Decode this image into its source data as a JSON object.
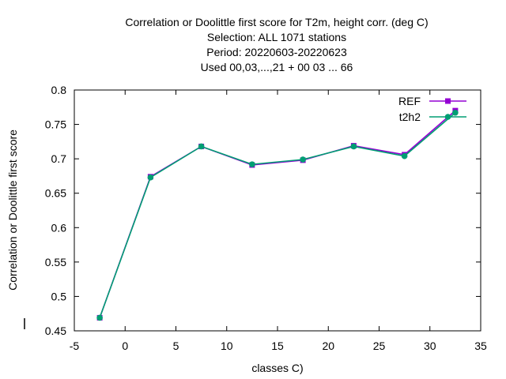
{
  "chart_data": {
    "type": "line",
    "title": [
      "Correlation or Doolittle first score  for T2m, height corr. (deg C)",
      "Selection: ALL   1071 stations",
      "Period: 20220603-20220623",
      "Used  00,03,...,21  + 00 03 ... 66"
    ],
    "xlabel": "classes C)",
    "ylabel": "Correlation or Doolittle first score",
    "xlim": [
      -5,
      35
    ],
    "ylim": [
      0.45,
      0.8
    ],
    "x_ticks": [
      "-5",
      "0",
      "5",
      "10",
      "15",
      "20",
      "25",
      "30",
      "35"
    ],
    "y_ticks": [
      "0.45",
      "0.5",
      "0.55",
      "0.6",
      "0.65",
      "0.7",
      "0.75",
      "0.8"
    ],
    "grid": false,
    "legend_position": "top-right",
    "series": [
      {
        "name": "REF",
        "color": "#9400d3",
        "marker": "square",
        "x": [
          -2.5,
          2.5,
          7.5,
          12.5,
          17.5,
          22.5,
          27.5,
          32.5
        ],
        "values": [
          0.469,
          0.674,
          0.718,
          0.691,
          0.698,
          0.719,
          0.706,
          0.77
        ]
      },
      {
        "name": "t2h2",
        "color": "#009e73",
        "marker": "circle",
        "x": [
          -2.5,
          2.5,
          7.5,
          12.5,
          17.5,
          22.5,
          27.5,
          32.5
        ],
        "values": [
          0.469,
          0.673,
          0.718,
          0.692,
          0.699,
          0.718,
          0.704,
          0.767
        ]
      }
    ]
  }
}
